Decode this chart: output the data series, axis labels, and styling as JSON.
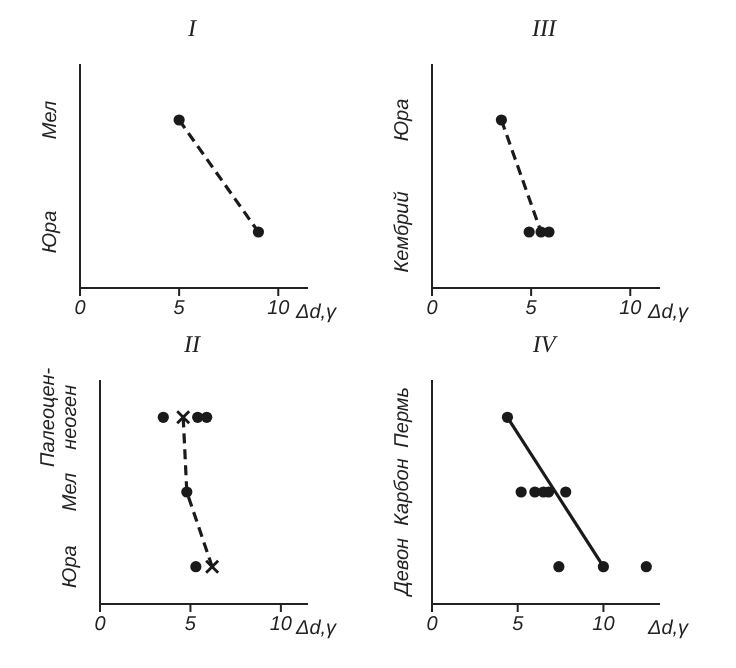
{
  "chart_data": [
    {
      "type": "scatter",
      "title": "I",
      "orientation": "horizontal",
      "categories": [
        "Мел",
        "Юра"
      ],
      "xlim": [
        0,
        11.5
      ],
      "xticks": [
        0,
        5,
        10
      ],
      "xlabel": "Δd,γ",
      "grid": false,
      "legend": false,
      "series": [
        {
          "type": "line",
          "color": "#1a1a1a",
          "values": [
            5,
            9
          ],
          "marker": "circle",
          "line_style": "dashed"
        }
      ]
    },
    {
      "type": "scatter",
      "title": "III",
      "orientation": "horizontal",
      "categories": [
        "Юра",
        "Кембрий"
      ],
      "xlim": [
        0,
        11.5
      ],
      "xticks": [
        0,
        5,
        10
      ],
      "xlabel": "Δd,γ",
      "grid": false,
      "legend": false,
      "series": [
        {
          "type": "line",
          "color": "#1a1a1a",
          "values": [
            3.5,
            5.5
          ],
          "marker": "circle",
          "line_style": "dashed"
        },
        {
          "color": "#1a1a1a",
          "values": [
            null,
            4.9
          ],
          "marker": "circle"
        },
        {
          "color": "#1a1a1a",
          "values": [
            null,
            5.9
          ],
          "marker": "circle"
        }
      ]
    },
    {
      "type": "scatter",
      "title": "II",
      "orientation": "horizontal",
      "categories": [
        "Палеоцен-неоген",
        "Мел",
        "Юра"
      ],
      "xlim": [
        0,
        11.5
      ],
      "xticks": [
        0,
        5,
        10
      ],
      "xlabel": "Δd,γ",
      "grid": false,
      "legend": false,
      "series": [
        {
          "type": "line",
          "color": "#1a1a1a",
          "values": [
            4.6,
            4.8,
            6.2
          ],
          "marker": "none",
          "line_style": "dashed"
        },
        {
          "color": "#1a1a1a",
          "values": [
            3.5,
            4.8,
            5.3
          ],
          "marker": "circle"
        },
        {
          "color": "#1a1a1a",
          "values": [
            5.4,
            null,
            null
          ],
          "marker": "circle"
        },
        {
          "color": "#1a1a1a",
          "values": [
            5.9,
            null,
            null
          ],
          "marker": "circle"
        },
        {
          "color": "#1a1a1a",
          "values": [
            4.6,
            null,
            6.2
          ],
          "marker": "cross"
        }
      ]
    },
    {
      "type": "scatter",
      "title": "IV",
      "orientation": "horizontal",
      "categories": [
        "Пермь",
        "Карбон",
        "Девон"
      ],
      "xlim": [
        0,
        13.3
      ],
      "xticks": [
        0,
        5,
        10
      ],
      "xlabel": "Δd,γ",
      "grid": false,
      "legend": false,
      "series": [
        {
          "type": "line",
          "color": "#1a1a1a",
          "values": [
            4.4,
            7.2,
            10
          ],
          "marker": "none",
          "line_style": "solid"
        },
        {
          "color": "#1a1a1a",
          "values": [
            4.4,
            5.2,
            10
          ],
          "marker": "circle"
        },
        {
          "color": "#1a1a1a",
          "values": [
            null,
            6.0,
            7.4
          ],
          "marker": "circle"
        },
        {
          "color": "#1a1a1a",
          "values": [
            null,
            6.8,
            null
          ],
          "marker": "circle"
        },
        {
          "color": "#1a1a1a",
          "values": [
            null,
            7.8,
            null
          ],
          "marker": "circle"
        },
        {
          "color": "#1a1a1a",
          "values": [
            null,
            6.5,
            12.5
          ],
          "marker": "circle"
        }
      ]
    }
  ]
}
